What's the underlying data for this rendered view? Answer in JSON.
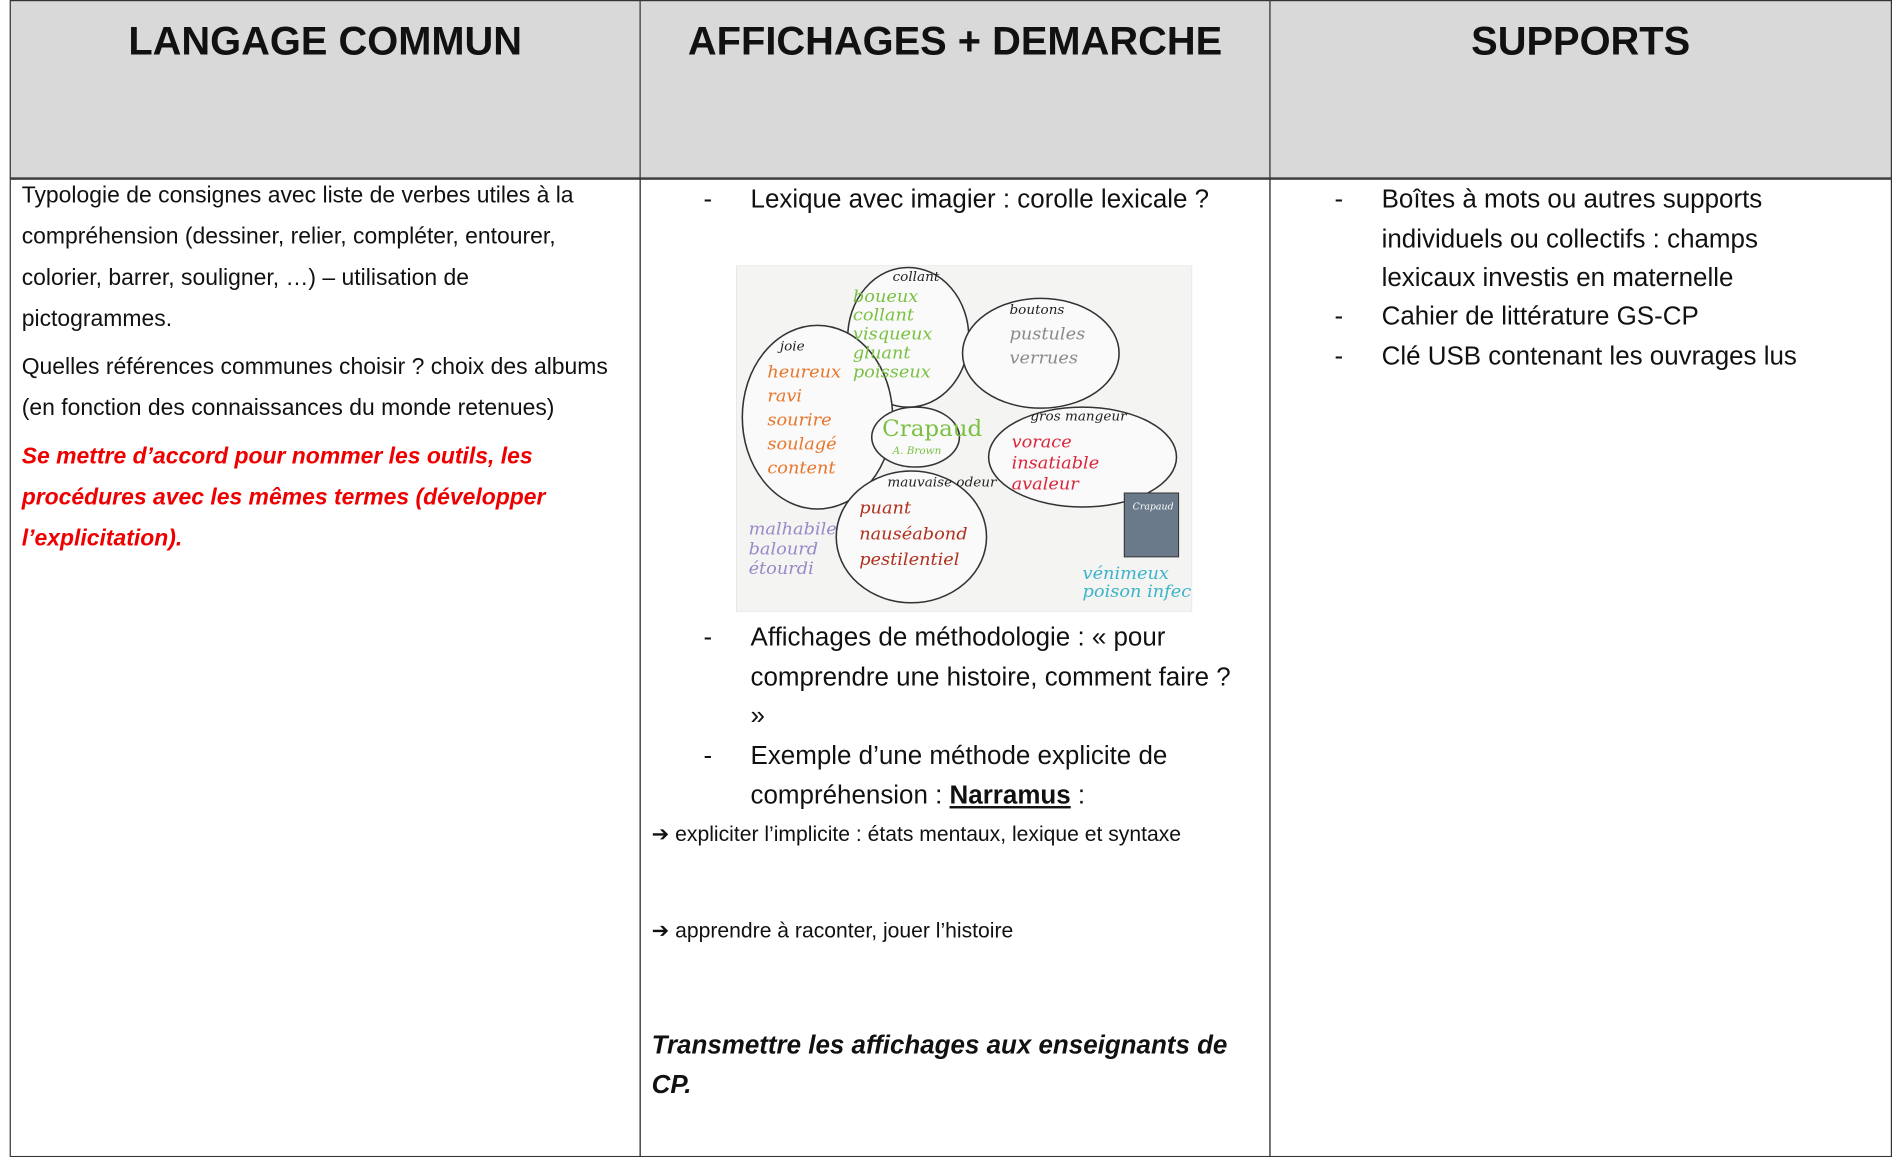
{
  "table": {
    "headers": [
      "LANGAGE COMMUN",
      "AFFICHAGES + DEMARCHE",
      "SUPPORTS"
    ],
    "columns": [
      {
        "paragraphs": [
          "Typologie de consignes avec liste de verbes utiles à la compréhension (dessiner, relier, compléter, entourer, colorier, barrer, souligner, …) – utilisation de pictogrammes.",
          "Quelles références communes choisir ? choix des albums (en fonction des connaissances du monde retenues)"
        ],
        "emphasis": "Se mettre d’accord pour nommer les outils, les procédures avec les mêmes termes (développer l’explicitation)."
      },
      {
        "items": [
          {
            "marker": "-",
            "text": "Lexique avec imagier : corolle lexicale ?"
          },
          {
            "marker": "-",
            "text": "Affichages de méthodologie : « pour comprendre une histoire, comment faire ? »"
          },
          {
            "marker": "-",
            "text": "Exemple d’une méthode explicite de compréhension : ",
            "link": "Narramus",
            "after": " :"
          }
        ],
        "arrows": [
          {
            "marker": "➔",
            "text": "expliciter l’implicite : états mentaux, lexique et syntaxe"
          },
          {
            "marker": "➔",
            "text": "apprendre à raconter, jouer l’histoire"
          }
        ],
        "emphasis": "Transmettre les affichages aux enseignants de CP."
      },
      {
        "items": [
          {
            "marker": "-",
            "text": "Boîtes à mots ou autres supports individuels ou collectifs : champs lexicaux investis en maternelle"
          },
          {
            "marker": "-",
            "text": "Cahier de littérature GS-CP"
          },
          {
            "marker": "-",
            "text": "Clé USB contenant les ouvrages lus"
          }
        ]
      }
    ]
  },
  "image": {
    "center": {
      "title": "Crapaud",
      "author": "A. Brown"
    },
    "book": "Crapaud",
    "groups": [
      {
        "heading": "collant",
        "color": "#7ac143",
        "words": [
          "boueux",
          "collant",
          "visqueux",
          "gluant",
          "poisseux"
        ]
      },
      {
        "heading": "boutons",
        "color": "#8a8a8a",
        "words": [
          "pustules",
          "verrues"
        ]
      },
      {
        "heading": "joie",
        "color": "#e8752a",
        "words": [
          "heureux",
          "ravi",
          "sourire",
          "soulagé",
          "content"
        ]
      },
      {
        "heading": "gros mangeur",
        "color": "#d9263a",
        "words": [
          "vorace",
          "insatiable",
          "avaleur"
        ]
      },
      {
        "heading": "mauvaise odeur",
        "color": "#b0301e",
        "words": [
          "puant",
          "nauséabond",
          "pestilentiel"
        ]
      },
      {
        "color": "#9a88c8",
        "words": [
          "malhabile",
          "balourd",
          "étourdi"
        ]
      },
      {
        "color": "#3bb3c9",
        "words": [
          "vénimeux",
          "poison infect"
        ]
      }
    ]
  }
}
